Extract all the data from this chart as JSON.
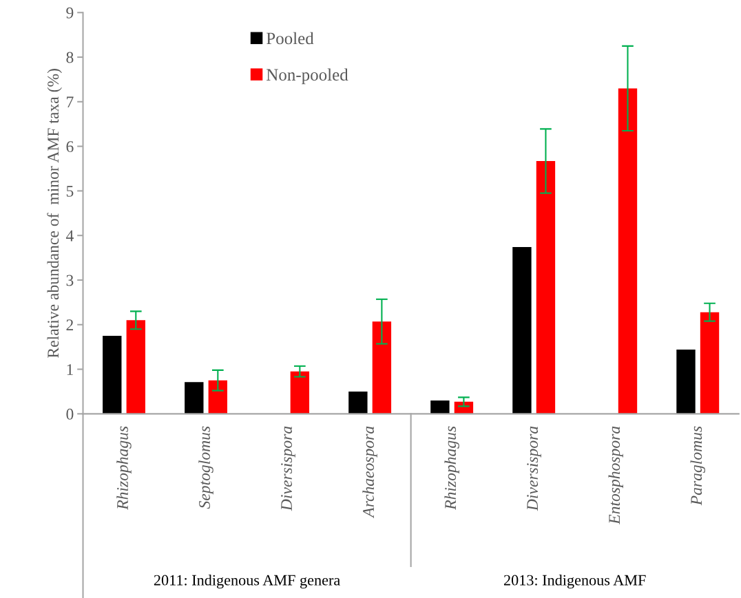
{
  "chart_data": {
    "type": "bar",
    "ylabel": "Relative abundance of  minor AMF taxa (%)",
    "categories": [
      "Rhizophagus",
      "Septoglomus",
      "Diversispora",
      "Archaeospora",
      "Rhizophagus",
      "Diversispora",
      "Entosphospora",
      "Paraglomus"
    ],
    "series": [
      {
        "name": "Pooled",
        "color": "#000000",
        "values": [
          1.75,
          0.71,
          null,
          0.5,
          0.3,
          3.74,
          null,
          1.44
        ]
      },
      {
        "name": "Non-pooled",
        "color": "#ff0000",
        "values": [
          2.1,
          0.75,
          0.95,
          2.07,
          0.27,
          5.67,
          7.3,
          2.28
        ],
        "errors": [
          0.2,
          0.23,
          0.12,
          0.5,
          0.1,
          0.72,
          0.95,
          0.2
        ]
      }
    ],
    "ylim": [
      0,
      9
    ],
    "yticks": [
      0,
      1,
      2,
      3,
      4,
      5,
      6,
      7,
      8,
      9
    ],
    "annotations": [
      "2011: Indigenous AMF genera",
      "2013: Indigenous AMF"
    ],
    "legend": "top",
    "grid": false
  }
}
